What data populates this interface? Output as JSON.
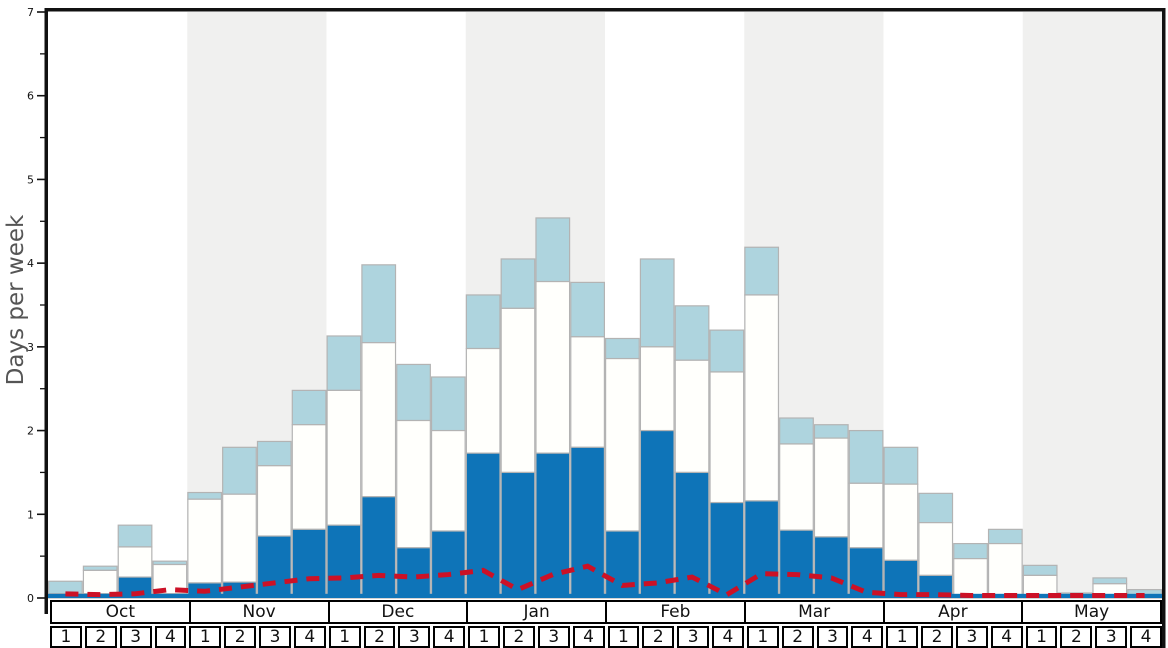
{
  "chart_data": {
    "type": "bar",
    "stacked": true,
    "ylabel": "Days per week",
    "ylim": [
      0,
      7
    ],
    "y_ticks": [
      "0",
      "1",
      "2",
      "3",
      "4",
      "5",
      "6",
      "7"
    ],
    "grid": false,
    "legend": "none",
    "months": [
      "Oct",
      "Nov",
      "Dec",
      "Jan",
      "Feb",
      "Mar",
      "Apr",
      "May"
    ],
    "weeks_per_month": [
      "1",
      "2",
      "3",
      "4"
    ],
    "series": [
      {
        "name": "dark-blue-days",
        "color": "#0e74b8",
        "cumulative_tops": [
          0.05,
          0.05,
          0.25,
          0.05,
          0.18,
          0.19,
          0.74,
          0.82,
          0.87,
          1.21,
          0.6,
          0.8,
          1.73,
          1.5,
          1.73,
          1.8,
          0.8,
          2.0,
          1.5,
          1.14,
          1.16,
          0.81,
          0.73,
          0.6,
          0.45,
          0.27,
          0.02,
          0.02,
          0.0,
          0.0,
          0.0,
          0.0
        ]
      },
      {
        "name": "white-days",
        "color": "#fffffc",
        "cumulative_tops": [
          0.05,
          0.33,
          0.61,
          0.4,
          1.18,
          1.24,
          1.58,
          2.07,
          2.48,
          3.05,
          2.12,
          2.0,
          2.98,
          3.46,
          3.78,
          3.12,
          2.86,
          3.0,
          2.84,
          2.7,
          3.62,
          1.84,
          1.91,
          1.37,
          1.36,
          0.9,
          0.47,
          0.65,
          0.27,
          0.03,
          0.17,
          0.03
        ]
      },
      {
        "name": "light-blue-days",
        "color": "#aed4de",
        "cumulative_tops": [
          0.2,
          0.38,
          0.87,
          0.44,
          1.26,
          1.8,
          1.87,
          2.48,
          3.13,
          3.98,
          2.79,
          2.64,
          3.62,
          4.05,
          4.54,
          3.77,
          3.1,
          4.05,
          3.49,
          3.2,
          4.19,
          2.15,
          2.07,
          2.0,
          1.8,
          1.25,
          0.65,
          0.82,
          0.39,
          0.06,
          0.24,
          0.1
        ]
      }
    ],
    "line": {
      "name": "red-dashed-line",
      "color": "#cc1126",
      "style": "dashed",
      "values": [
        0.05,
        0.04,
        0.05,
        0.1,
        0.08,
        0.13,
        0.18,
        0.23,
        0.24,
        0.27,
        0.25,
        0.28,
        0.33,
        0.1,
        0.28,
        0.38,
        0.15,
        0.18,
        0.25,
        0.04,
        0.29,
        0.28,
        0.24,
        0.07,
        0.04,
        0.04,
        0.03,
        0.03,
        0.03,
        0.03,
        0.03,
        0.03
      ]
    },
    "baseline_strip_value": 0.05,
    "colors": {
      "band_gray": "#f0f0ef",
      "band_white": "#ffffff",
      "bar_border": "#b3b3b3",
      "spine": "#111111",
      "tick_text": "#111111",
      "ylabel_text": "#555555"
    }
  }
}
